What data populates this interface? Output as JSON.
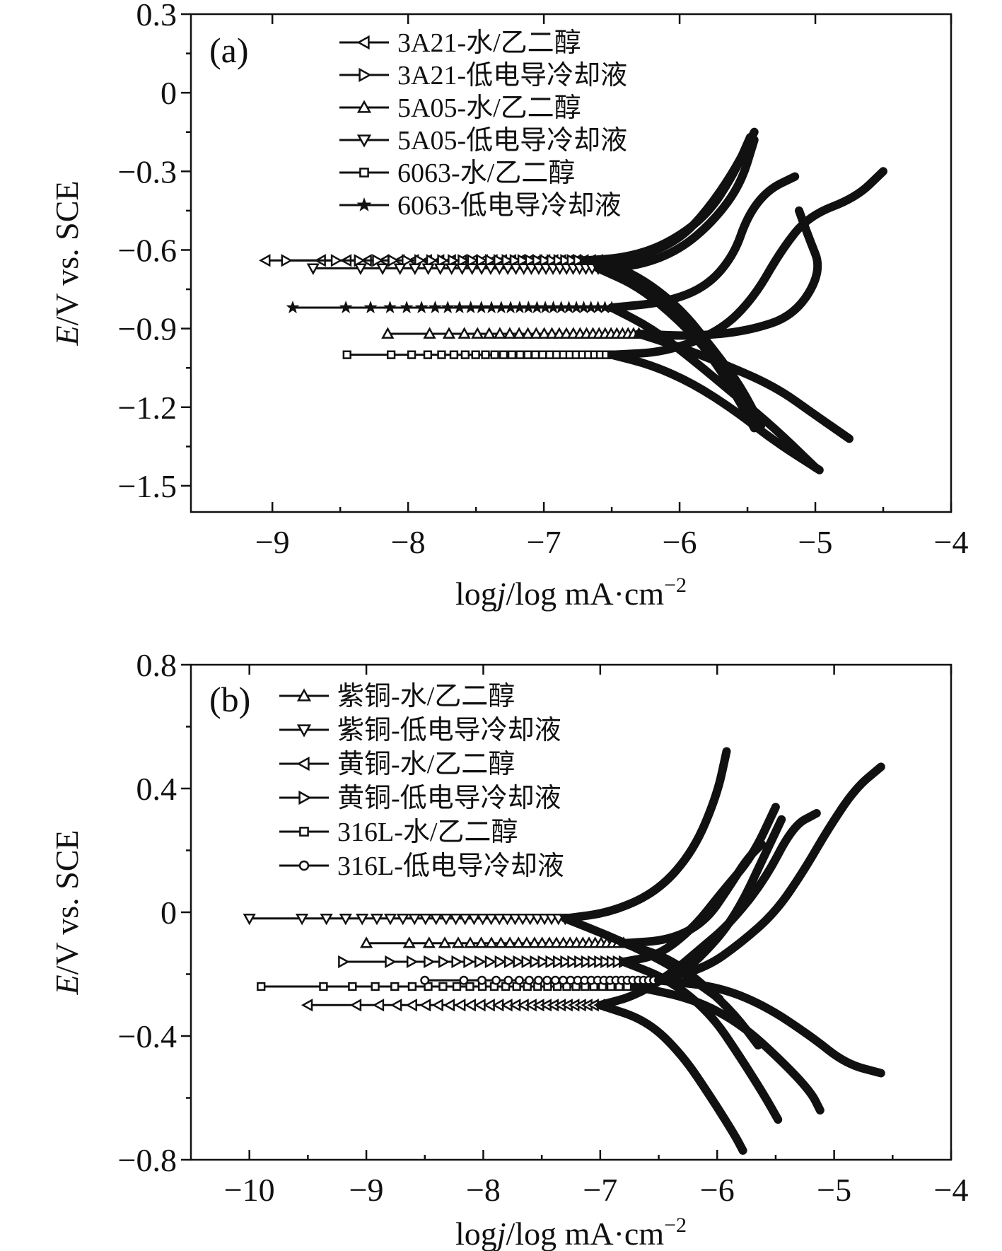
{
  "chart_data": [
    {
      "type": "line",
      "panel_label": "(a)",
      "xlabel": "logj/log mA·cm",
      "xlabel_parts": {
        "prefix": "log",
        "italic": "j",
        "suffix": "/log mA·cm",
        "superscript": "−2"
      },
      "ylabel": "E/V vs. SCE",
      "ylabel_parts": {
        "italic": "E",
        "rest": "/V vs. SCE"
      },
      "xlim": [
        -9.6,
        -4
      ],
      "ylim": [
        -1.6,
        0.3
      ],
      "xticks": [
        -9,
        -8,
        -7,
        -6,
        -5,
        -4
      ],
      "xtick_labels": [
        "−9",
        "−8",
        "−7",
        "−6",
        "−5",
        "−4"
      ],
      "yticks": [
        0.3,
        0,
        -0.3,
        -0.6,
        -0.9,
        -1.2,
        -1.5
      ],
      "ytick_labels": [
        "0.3",
        "0",
        "−0.3",
        "−0.6",
        "−0.9",
        "−1.2",
        "−1.5"
      ],
      "legend_position": "top-left",
      "series": [
        {
          "name": "3A21-水/乙二醇",
          "marker": "triangle-left",
          "ecorr": -0.64,
          "log_jcorr": -6.6,
          "tail_start": -9.05,
          "anodic": [
            [
              -6.6,
              -0.64
            ],
            [
              -6.3,
              -0.63
            ],
            [
              -6.0,
              -0.56
            ],
            [
              -5.8,
              -0.45
            ],
            [
              -5.6,
              -0.3
            ],
            [
              -5.45,
              -0.15
            ]
          ],
          "cathodic": [
            [
              -6.6,
              -0.64
            ],
            [
              -6.3,
              -0.7
            ],
            [
              -6.0,
              -0.82
            ],
            [
              -5.75,
              -0.98
            ],
            [
              -5.55,
              -1.12
            ],
            [
              -5.4,
              -1.27
            ]
          ]
        },
        {
          "name": "3A21-低电导冷却液",
          "marker": "triangle-right",
          "ecorr": -0.64,
          "log_jcorr": -6.7,
          "tail_start": -8.9,
          "anodic": [
            [
              -6.7,
              -0.64
            ],
            [
              -6.4,
              -0.63
            ],
            [
              -6.1,
              -0.58
            ],
            [
              -5.8,
              -0.47
            ],
            [
              -5.6,
              -0.31
            ],
            [
              -5.48,
              -0.17
            ]
          ],
          "cathodic": [
            [
              -6.7,
              -0.64
            ],
            [
              -6.4,
              -0.69
            ],
            [
              -6.1,
              -0.8
            ],
            [
              -5.8,
              -0.98
            ],
            [
              -5.6,
              -1.14
            ],
            [
              -5.45,
              -1.28
            ]
          ]
        },
        {
          "name": "5A05-水/乙二醇",
          "marker": "triangle-up",
          "ecorr": -0.92,
          "log_jcorr": -6.3,
          "tail_start": -8.15,
          "anodic": [
            [
              -6.3,
              -0.92
            ],
            [
              -5.9,
              -0.93
            ],
            [
              -5.5,
              -0.91
            ],
            [
              -5.15,
              -0.85
            ],
            [
              -4.95,
              -0.68
            ],
            [
              -5.05,
              -0.55
            ],
            [
              -5.12,
              -0.45
            ]
          ],
          "cathodic": [
            [
              -6.3,
              -0.92
            ],
            [
              -6.0,
              -0.97
            ],
            [
              -5.7,
              -1.03
            ],
            [
              -5.3,
              -1.12
            ],
            [
              -5.0,
              -1.23
            ],
            [
              -4.75,
              -1.32
            ]
          ]
        },
        {
          "name": "5A05-低电导冷却液",
          "marker": "triangle-down",
          "ecorr": -0.67,
          "log_jcorr": -6.6,
          "tail_start": -8.7,
          "anodic": [
            [
              -6.6,
              -0.67
            ],
            [
              -6.3,
              -0.66
            ],
            [
              -6.0,
              -0.6
            ],
            [
              -5.75,
              -0.49
            ],
            [
              -5.55,
              -0.35
            ],
            [
              -5.45,
              -0.18
            ]
          ],
          "cathodic": [
            [
              -6.6,
              -0.67
            ],
            [
              -6.3,
              -0.74
            ],
            [
              -6.0,
              -0.87
            ],
            [
              -5.75,
              -1.01
            ],
            [
              -5.55,
              -1.15
            ],
            [
              -5.42,
              -1.27
            ]
          ]
        },
        {
          "name": "6063-水/乙二醇",
          "marker": "square",
          "ecorr": -1.0,
          "log_jcorr": -6.5,
          "tail_start": -8.45,
          "anodic": [
            [
              -6.5,
              -1.0
            ],
            [
              -6.1,
              -0.99
            ],
            [
              -5.7,
              -0.91
            ],
            [
              -5.45,
              -0.78
            ],
            [
              -5.25,
              -0.6
            ],
            [
              -5.05,
              -0.47
            ],
            [
              -4.7,
              -0.4
            ],
            [
              -4.5,
              -0.3
            ]
          ],
          "cathodic": [
            [
              -6.5,
              -1.0
            ],
            [
              -6.2,
              -1.04
            ],
            [
              -5.9,
              -1.11
            ],
            [
              -5.6,
              -1.21
            ],
            [
              -5.3,
              -1.33
            ],
            [
              -4.97,
              -1.44
            ]
          ]
        },
        {
          "name": "6063-低电导冷却液",
          "marker": "star",
          "ecorr": -0.82,
          "log_jcorr": -6.5,
          "tail_start": -8.85,
          "anodic": [
            [
              -6.5,
              -0.82
            ],
            [
              -6.1,
              -0.8
            ],
            [
              -5.8,
              -0.74
            ],
            [
              -5.6,
              -0.62
            ],
            [
              -5.5,
              -0.47
            ],
            [
              -5.35,
              -0.37
            ],
            [
              -5.15,
              -0.32
            ]
          ],
          "cathodic": [
            [
              -6.5,
              -0.82
            ],
            [
              -6.2,
              -0.9
            ],
            [
              -5.9,
              -1.02
            ],
            [
              -5.6,
              -1.15
            ],
            [
              -5.3,
              -1.28
            ],
            [
              -5.0,
              -1.43
            ]
          ]
        }
      ]
    },
    {
      "type": "line",
      "panel_label": "(b)",
      "xlabel": "logj/log mA·cm",
      "xlabel_parts": {
        "prefix": "log",
        "italic": "j",
        "suffix": "/log mA·cm",
        "superscript": "−2"
      },
      "ylabel": "E/V vs. SCE",
      "ylabel_parts": {
        "italic": "E",
        "rest": "/V vs. SCE"
      },
      "xlim": [
        -10.5,
        -4
      ],
      "ylim": [
        -0.8,
        0.8
      ],
      "xticks": [
        -10,
        -9,
        -8,
        -7,
        -6,
        -5,
        -4
      ],
      "xtick_labels": [
        "−10",
        "−9",
        "−8",
        "−7",
        "−6",
        "−5",
        "−4"
      ],
      "yticks": [
        0.8,
        0.4,
        0,
        -0.4,
        -0.8
      ],
      "ytick_labels": [
        "0.8",
        "0.4",
        "0",
        "−0.4",
        "−0.8"
      ],
      "legend_position": "top-left",
      "series": [
        {
          "name": "紫铜-水/乙二醇",
          "marker": "triangle-up",
          "ecorr": -0.1,
          "log_jcorr": -6.8,
          "tail_start": -9.0,
          "anodic": [
            [
              -6.8,
              -0.1
            ],
            [
              -6.4,
              -0.09
            ],
            [
              -6.1,
              -0.03
            ],
            [
              -5.9,
              0.08
            ],
            [
              -5.75,
              0.17
            ],
            [
              -5.62,
              0.22
            ]
          ],
          "cathodic": [
            [
              -6.8,
              -0.1
            ],
            [
              -6.4,
              -0.15
            ],
            [
              -6.1,
              -0.24
            ],
            [
              -5.85,
              -0.33
            ],
            [
              -5.65,
              -0.43
            ]
          ]
        },
        {
          "name": "紫铜-低电导冷却液",
          "marker": "triangle-down",
          "ecorr": -0.02,
          "log_jcorr": -7.3,
          "tail_start": -10.0,
          "anodic": [
            [
              -7.3,
              -0.02
            ],
            [
              -6.9,
              0.0
            ],
            [
              -6.5,
              0.07
            ],
            [
              -6.2,
              0.2
            ],
            [
              -6.0,
              0.38
            ],
            [
              -5.92,
              0.52
            ]
          ],
          "cathodic": [
            [
              -7.3,
              -0.02
            ],
            [
              -6.9,
              -0.08
            ],
            [
              -6.5,
              -0.15
            ],
            [
              -6.2,
              -0.22
            ],
            [
              -5.98,
              -0.28
            ]
          ]
        },
        {
          "name": "黄铜-水/乙二醇",
          "marker": "triangle-left",
          "ecorr": -0.3,
          "log_jcorr": -7.0,
          "tail_start": -9.5,
          "anodic": [
            [
              -7.0,
              -0.3
            ],
            [
              -6.7,
              -0.27
            ],
            [
              -6.4,
              -0.2
            ],
            [
              -6.15,
              -0.12
            ],
            [
              -5.9,
              -0.04
            ],
            [
              -5.6,
              0.1
            ],
            [
              -5.35,
              0.28
            ],
            [
              -5.15,
              0.32
            ]
          ],
          "cathodic": [
            [
              -7.0,
              -0.3
            ],
            [
              -6.6,
              -0.35
            ],
            [
              -6.3,
              -0.46
            ],
            [
              -6.05,
              -0.6
            ],
            [
              -5.85,
              -0.72
            ],
            [
              -5.78,
              -0.77
            ]
          ]
        },
        {
          "name": "黄铜-低电导冷却液",
          "marker": "triangle-right",
          "ecorr": -0.16,
          "log_jcorr": -6.8,
          "tail_start": -9.2,
          "anodic": [
            [
              -6.8,
              -0.16
            ],
            [
              -6.5,
              -0.14
            ],
            [
              -6.2,
              -0.05
            ],
            [
              -5.95,
              0.07
            ],
            [
              -5.7,
              0.18
            ],
            [
              -5.5,
              0.34
            ]
          ],
          "cathodic": [
            [
              -6.8,
              -0.16
            ],
            [
              -6.4,
              -0.22
            ],
            [
              -6.05,
              -0.33
            ],
            [
              -5.8,
              -0.47
            ],
            [
              -5.6,
              -0.59
            ],
            [
              -5.48,
              -0.67
            ]
          ]
        },
        {
          "name": "316L-水/乙二醇",
          "marker": "square",
          "ecorr": -0.24,
          "log_jcorr": -6.7,
          "tail_start": -9.9,
          "anodic": [
            [
              -6.7,
              -0.24
            ],
            [
              -6.3,
              -0.2
            ],
            [
              -6.0,
              -0.09
            ],
            [
              -5.8,
              0.02
            ],
            [
              -5.6,
              0.18
            ],
            [
              -5.45,
              0.3
            ]
          ],
          "cathodic": [
            [
              -6.7,
              -0.24
            ],
            [
              -6.2,
              -0.28
            ],
            [
              -5.8,
              -0.36
            ],
            [
              -5.45,
              -0.48
            ],
            [
              -5.2,
              -0.58
            ],
            [
              -5.12,
              -0.64
            ]
          ]
        },
        {
          "name": "316L-低电导冷却液",
          "marker": "circle",
          "ecorr": -0.22,
          "log_jcorr": -6.5,
          "tail_start": -8.5,
          "anodic": [
            [
              -6.5,
              -0.22
            ],
            [
              -6.1,
              -0.18
            ],
            [
              -5.8,
              -0.1
            ],
            [
              -5.5,
              0.0
            ],
            [
              -5.25,
              0.14
            ],
            [
              -5.05,
              0.27
            ],
            [
              -4.82,
              0.4
            ],
            [
              -4.6,
              0.47
            ]
          ],
          "cathodic": [
            [
              -6.5,
              -0.22
            ],
            [
              -6.0,
              -0.24
            ],
            [
              -5.6,
              -0.3
            ],
            [
              -5.2,
              -0.4
            ],
            [
              -4.9,
              -0.49
            ],
            [
              -4.6,
              -0.52
            ]
          ]
        }
      ]
    }
  ]
}
